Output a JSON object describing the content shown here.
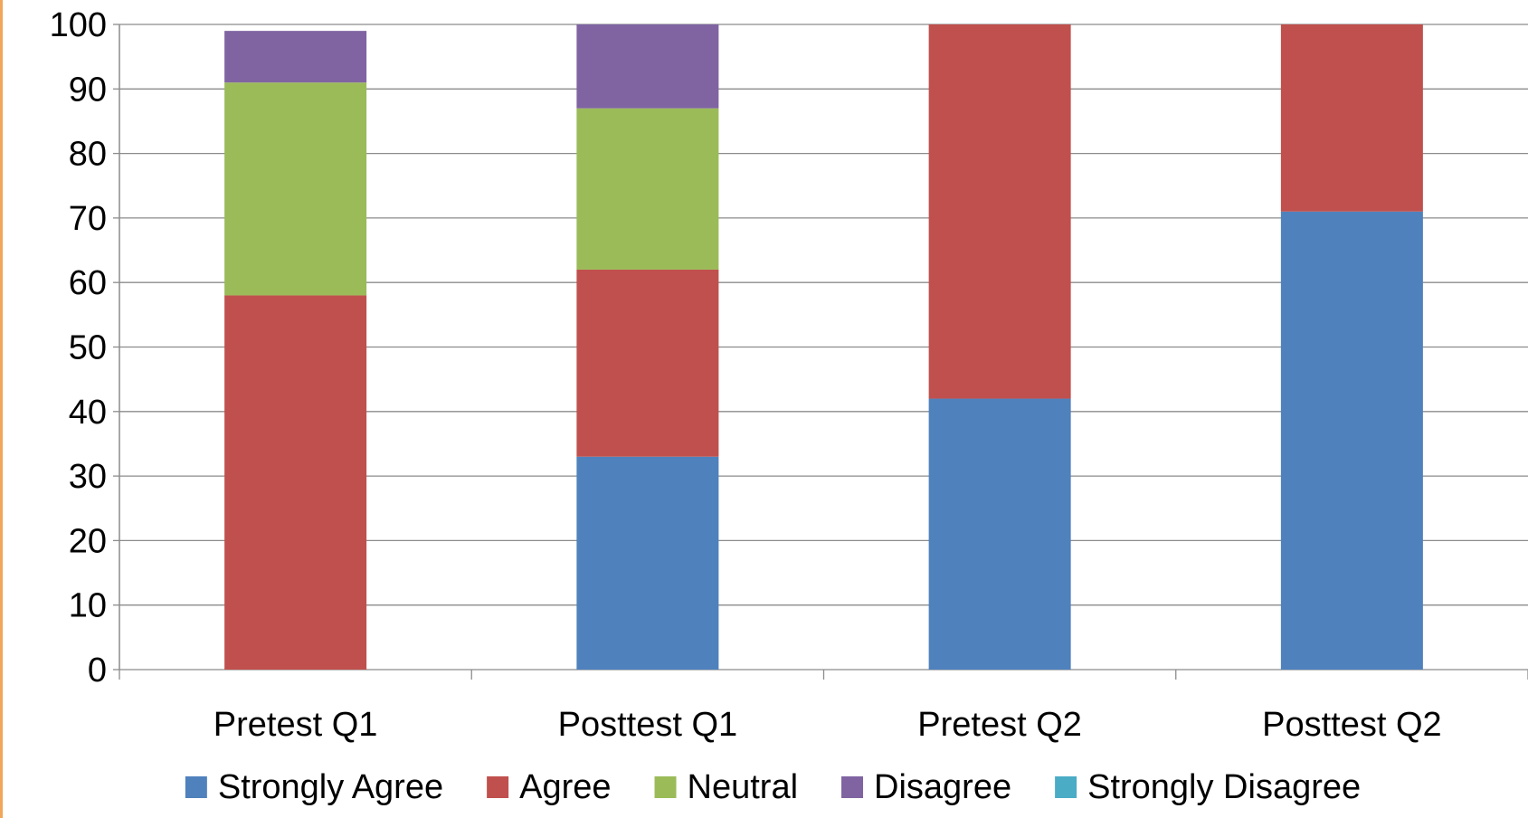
{
  "chart_data": {
    "type": "bar",
    "stacked": true,
    "categories": [
      "Pretest Q1",
      "Posttest Q1",
      "Pretest Q2",
      "Posttest Q2"
    ],
    "series": [
      {
        "name": "Strongly Agree",
        "color": "#4f81bd",
        "values": [
          0,
          33,
          42,
          71
        ]
      },
      {
        "name": "Agree",
        "color": "#c0504d",
        "values": [
          58,
          29,
          58,
          29
        ]
      },
      {
        "name": "Neutral",
        "color": "#9bbb59",
        "values": [
          33,
          25,
          0,
          0
        ]
      },
      {
        "name": "Disagree",
        "color": "#8064a2",
        "values": [
          8,
          13,
          0,
          0
        ]
      },
      {
        "name": "Strongly Disagree",
        "color": "#4bacc6",
        "values": [
          0,
          0,
          0,
          0
        ]
      }
    ],
    "yticks": [
      "0",
      "10",
      "20",
      "30",
      "40",
      "50",
      "60",
      "70",
      "80",
      "90",
      "100"
    ],
    "ylim": [
      0,
      100
    ],
    "grid": true,
    "legend_position": "bottom"
  }
}
